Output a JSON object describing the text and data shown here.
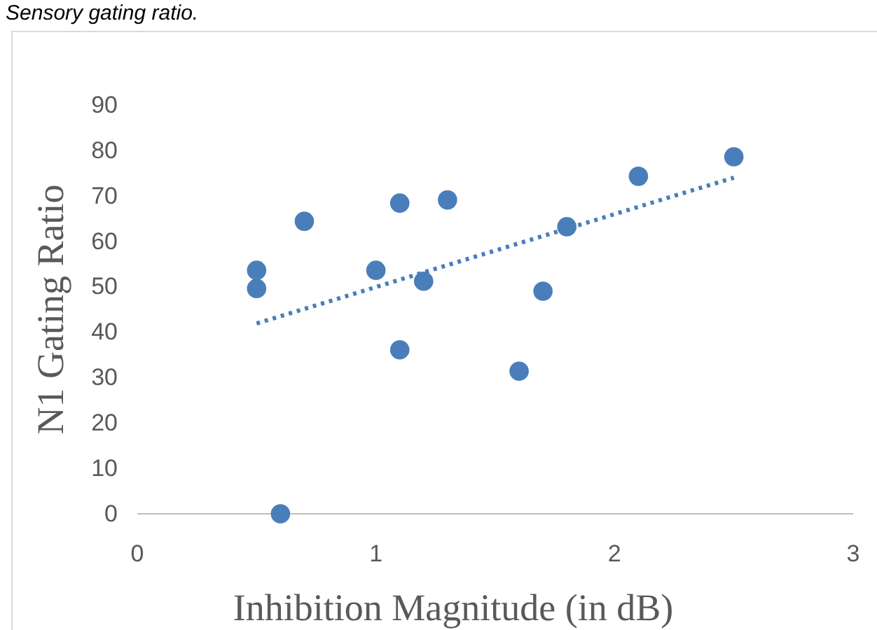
{
  "chart_data": {
    "type": "scatter",
    "title": "Sensory gating ratio.",
    "xlabel": "Inhibition Magnitude (in dB)",
    "ylabel": "N1 Gating Ratio",
    "xlim": [
      0,
      3
    ],
    "xticks": [
      0,
      1,
      2,
      3
    ],
    "ylim": [
      0,
      90
    ],
    "yticks": [
      0,
      10,
      20,
      30,
      40,
      50,
      60,
      70,
      80,
      90
    ],
    "grid": false,
    "marker": "circle",
    "series": [
      {
        "color": "#4a7ebb",
        "x": [
          0.5,
          0.5,
          0.6,
          0.7,
          1.0,
          1.1,
          1.1,
          1.2,
          1.3,
          1.6,
          1.7,
          1.8,
          2.1,
          2.5
        ],
        "values": [
          53.6,
          49.6,
          0,
          64.4,
          53.6,
          68.4,
          36.1,
          51.2,
          69.1,
          31.4,
          49.0,
          63.2,
          74.3,
          78.6
        ]
      },
      {
        "type": "line",
        "color": "#4a7ebb",
        "line_style": "dotted",
        "marker": "none",
        "x": [
          0.5,
          2.5
        ],
        "values": [
          41.9,
          74
        ]
      }
    ]
  }
}
